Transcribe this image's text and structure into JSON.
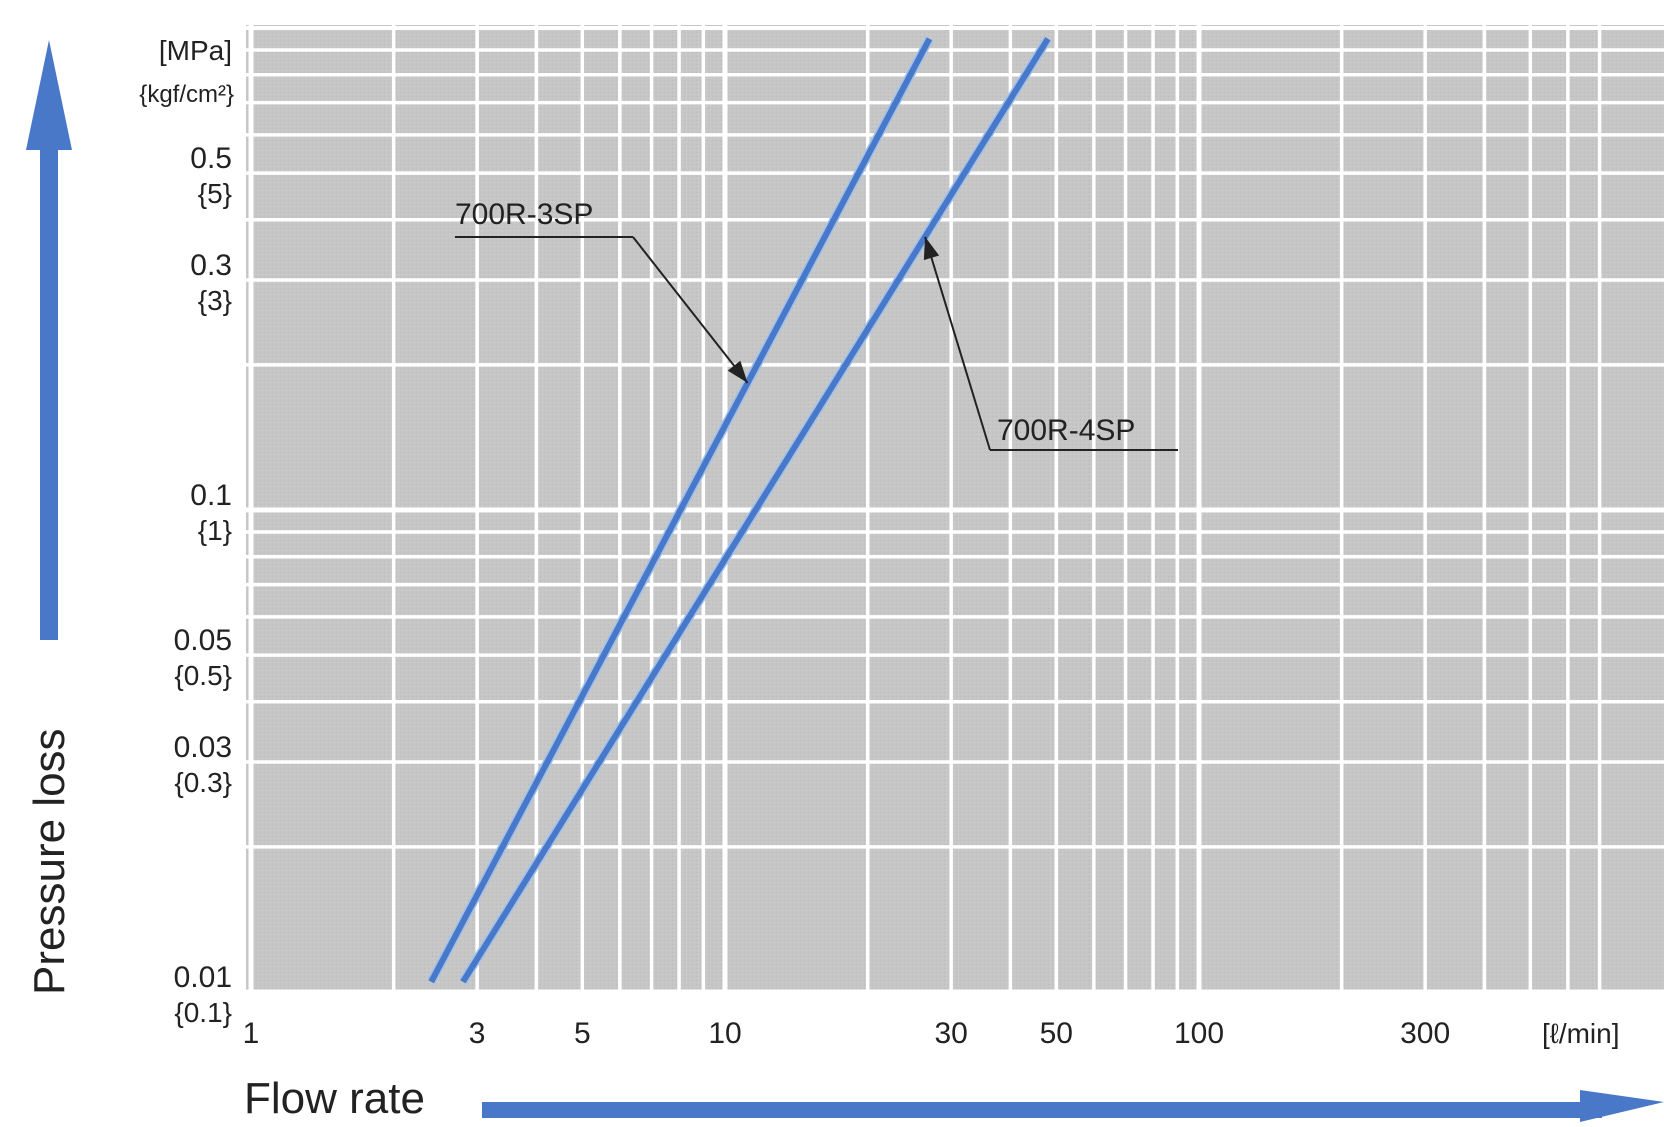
{
  "chart_data": {
    "type": "line",
    "title": "",
    "xlabel": "Flow rate",
    "ylabel": "Pressure loss",
    "x_scale": "log",
    "y_scale": "log",
    "xlim": [
      1,
      700
    ],
    "ylim": [
      0.01,
      1
    ],
    "x_unit": "[ℓ/min]",
    "y_unit_primary": "[MPa]",
    "y_unit_secondary": "{kgf/cm²}",
    "x_ticks": [
      1,
      3,
      5,
      10,
      30,
      50,
      100,
      300
    ],
    "x_tick_labels": [
      "1",
      "3",
      "5",
      "10",
      "30",
      "50",
      "100",
      "300"
    ],
    "y_ticks": [
      0.01,
      0.03,
      0.05,
      0.1,
      0.3,
      0.5
    ],
    "y_tick_labels": [
      "0.01",
      "0.03",
      "0.05",
      "0.1",
      "0.3",
      "0.5"
    ],
    "y_tick_labels_secondary": [
      "{0.1}",
      "{0.3}",
      "{0.5}",
      "{1}",
      "{3}",
      "{5}"
    ],
    "grid": true,
    "series": [
      {
        "name": "700R-3SP",
        "color": "#4a78c8",
        "points": [
          {
            "x": 2.4,
            "y": 0.0105
          },
          {
            "x": 27,
            "y": 0.95
          }
        ]
      },
      {
        "name": "700R-4SP",
        "color": "#4a78c8",
        "points": [
          {
            "x": 2.8,
            "y": 0.0105
          },
          {
            "x": 48,
            "y": 0.95
          }
        ]
      }
    ],
    "annotations": [
      {
        "text": "700R-3SP",
        "series": "700R-3SP"
      },
      {
        "text": "700R-4SP",
        "series": "700R-4SP"
      }
    ],
    "colors": {
      "plot_background": "#c4c4c4",
      "grid": "#ffffff",
      "axis_arrow": "#4a78c8",
      "series_line": "#4a78c8"
    }
  }
}
